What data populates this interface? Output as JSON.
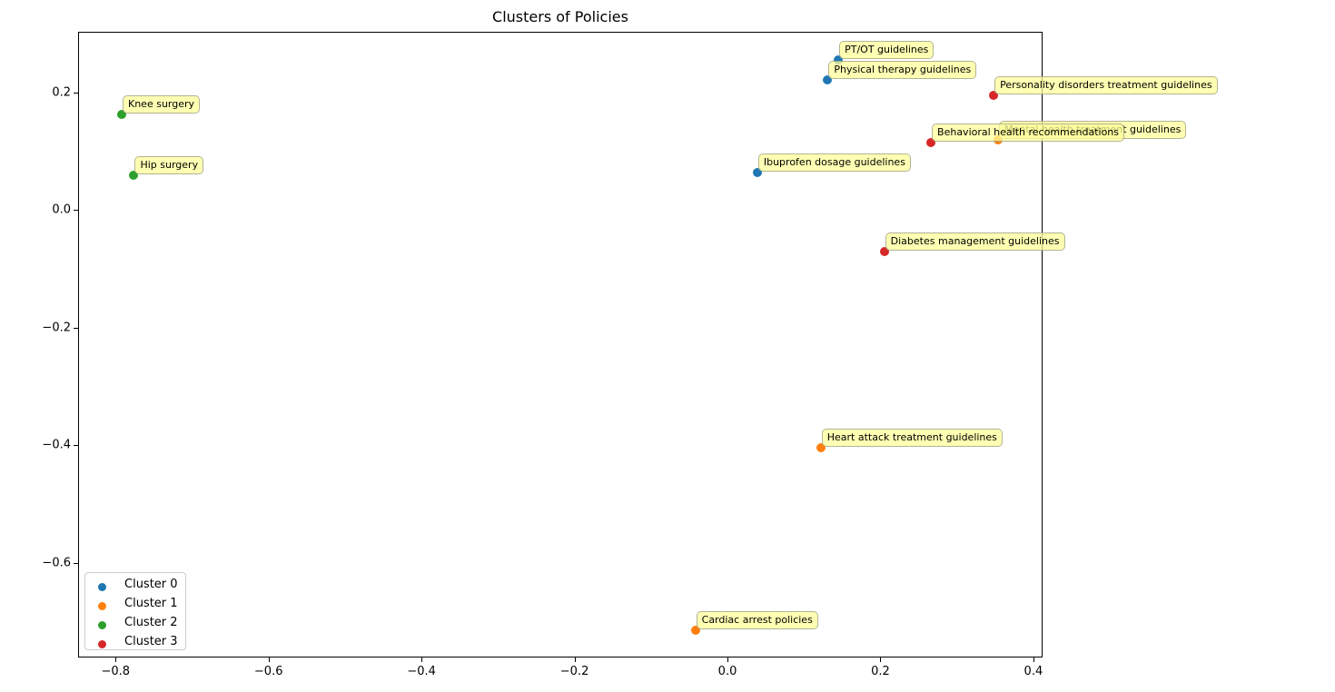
{
  "chart_data": {
    "type": "scatter",
    "title": "Clusters of Policies",
    "xlabel": "",
    "ylabel": "",
    "xlim": [
      -0.849,
      0.412
    ],
    "ylim": [
      -0.761,
      0.303
    ],
    "grid": false,
    "legend_position": "lower left",
    "x_ticks": [
      "−0.8",
      "−0.6",
      "−0.4",
      "−0.2",
      "0.0",
      "0.2",
      "0.4"
    ],
    "x_tick_values": [
      -0.8,
      -0.6,
      -0.4,
      -0.2,
      0.0,
      0.2,
      0.4
    ],
    "y_ticks": [
      "0.2",
      "0.0",
      "−0.2",
      "−0.4",
      "−0.6"
    ],
    "y_tick_values": [
      0.2,
      0.0,
      -0.2,
      -0.4,
      -0.6
    ],
    "series": [
      {
        "name": "Cluster 0",
        "color": "#1f77b4",
        "points": [
          {
            "label": "PT/OT guidelines",
            "x": 0.145,
            "y": 0.255
          },
          {
            "label": "Physical therapy guidelines",
            "x": 0.131,
            "y": 0.221
          },
          {
            "label": "Ibuprofen dosage guidelines",
            "x": 0.039,
            "y": 0.063
          }
        ]
      },
      {
        "name": "Cluster 1",
        "color": "#ff7f0e",
        "points": [
          {
            "label": "Mental health treatment guidelines",
            "x": 0.354,
            "y": 0.119
          },
          {
            "label": "Heart attack treatment guidelines",
            "x": 0.122,
            "y": -0.405
          },
          {
            "label": "Cardiac arrest policies",
            "x": -0.042,
            "y": -0.715
          }
        ]
      },
      {
        "name": "Cluster 2",
        "color": "#2ca02c",
        "points": [
          {
            "label": "Knee surgery",
            "x": -0.792,
            "y": 0.162
          },
          {
            "label": "Hip surgery",
            "x": -0.776,
            "y": 0.059
          }
        ]
      },
      {
        "name": "Cluster 3",
        "color": "#d62728",
        "points": [
          {
            "label": "Personality disorders treatment guidelines",
            "x": 0.348,
            "y": 0.195
          },
          {
            "label": "Behavioral health recommendations",
            "x": 0.266,
            "y": 0.114
          },
          {
            "label": "Diabetes management guidelines",
            "x": 0.205,
            "y": -0.071
          }
        ]
      }
    ]
  }
}
